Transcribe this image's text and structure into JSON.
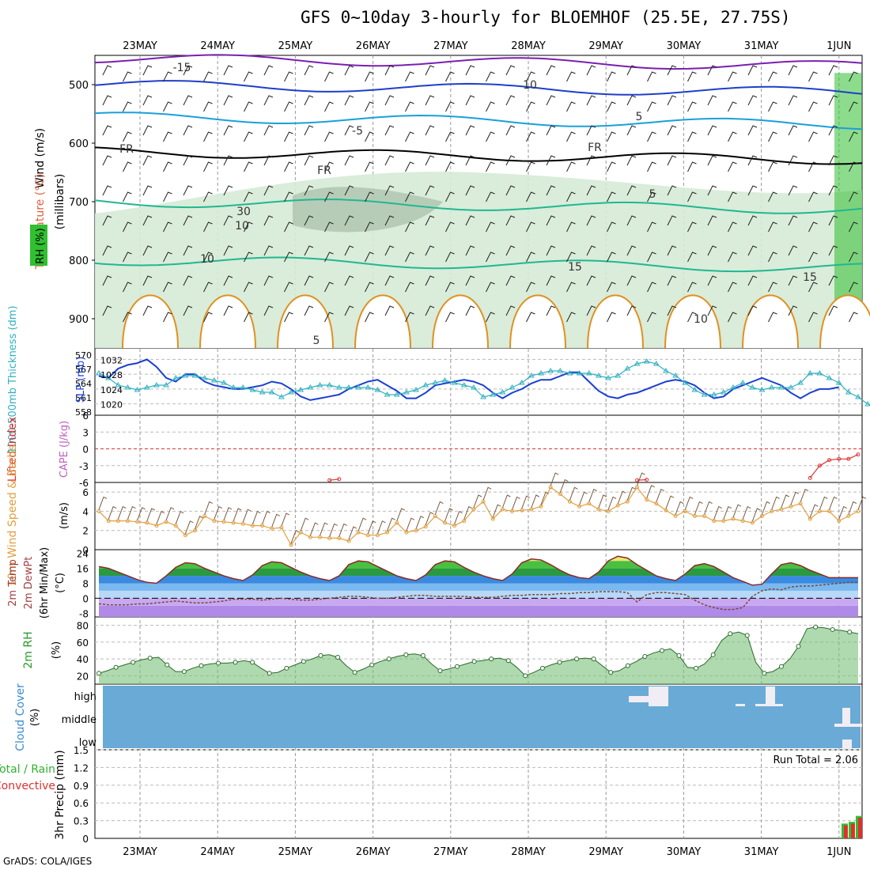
{
  "title": "GFS 0~10day 3-hourly for BLOEMHOF (25.5E, 27.75S)",
  "credit": "GrADS: COLA/IGES",
  "dates": [
    "23MAY",
    "24MAY",
    "25MAY",
    "26MAY",
    "27MAY",
    "28MAY",
    "29MAY",
    "30MAY",
    "31MAY",
    "1JUN"
  ],
  "colors": {
    "wind_contour": "#1f3fc8",
    "temp_cold": "#7a1fb0",
    "temp_mid": "#1aa0d8",
    "temp_warm": "#20b890",
    "temp_hot": "#e09020",
    "rh_shade": "#d6ead6",
    "rh_dark": "#a0b8a0",
    "green": "#30c030",
    "slp": "#1a3fd0",
    "thickness": "#30b0c0",
    "lifted": "#e03030",
    "wind10": "#e0a040",
    "cloud": "#6aaad6"
  },
  "chart_data": [
    {
      "type": "line",
      "panel": "upper-air",
      "ylabel": "(millibars)",
      "legend_labels": [
        "Wind (m/s)",
        "Temperature (°C)",
        "RH (%)"
      ],
      "y_ticks": [
        "500",
        "600",
        "700",
        "800",
        "900"
      ],
      "ylim": [
        950,
        450
      ],
      "contour_labels": [
        "-15",
        "10",
        "5",
        "-5",
        "FR",
        "FR",
        "FR",
        "5",
        "15",
        "10",
        "15",
        "10",
        "5",
        "30",
        "10"
      ]
    },
    {
      "type": "line",
      "panel": "slp-thickness",
      "ylabel_left": "1000-500mb Thickness (dm)",
      "ylabel_right": "SLP (mb)",
      "left_ticks": [
        "570",
        "567",
        "564",
        "561",
        "558"
      ],
      "right_ticks": [
        "1032",
        "1028",
        "1024",
        "1020"
      ],
      "series": [
        {
          "name": "SLP (mb)",
          "axis": "right",
          "values": [
            1027.5,
            1027,
            1029.5,
            1030.5,
            1031,
            1032,
            1030,
            1027,
            1026,
            1028,
            1028,
            1026,
            1025,
            1024.5,
            1024,
            1024,
            1024.5,
            1025,
            1026,
            1025.5,
            1024,
            1022,
            1021,
            1021.5,
            1022,
            1022.5,
            1024,
            1025,
            1026,
            1026.5,
            1025,
            1023.5,
            1021.5,
            1021.5,
            1023,
            1025,
            1025.5,
            1026,
            1026.5,
            1026,
            1025,
            1023,
            1021.5,
            1023,
            1024,
            1025.5,
            1026.5,
            1026.5,
            1027.5,
            1028.5,
            1028.5,
            1026,
            1023.5,
            1022,
            1021.5,
            1022.5,
            1023,
            1024,
            1025,
            1026,
            1026.5,
            1026,
            1025,
            1023,
            1021.5,
            1022,
            1024,
            1025,
            1026,
            1027,
            1026,
            1025,
            1023,
            1021.5,
            1023,
            1024,
            1024,
            1024.5
          ]
        },
        {
          "name": "1000-500mb Thickness (dm)",
          "axis": "left",
          "values": [
            566,
            565,
            563.5,
            563,
            562.5,
            563,
            563.5,
            563.5,
            565,
            565.5,
            565.5,
            565,
            564.5,
            564,
            563,
            563,
            562.5,
            562,
            562,
            561,
            562,
            562.5,
            563,
            563.5,
            563.5,
            563,
            563,
            563,
            563,
            562.5,
            561.5,
            561.5,
            562,
            562.5,
            563.5,
            564,
            564.5,
            564,
            563.5,
            563,
            561,
            561.5,
            562,
            563,
            564,
            565.5,
            566,
            566.5,
            566.5,
            566,
            566,
            566,
            565.5,
            565,
            565.5,
            567,
            568,
            568.5,
            568,
            566.5,
            565.5,
            564,
            562.5,
            561.5,
            561.5,
            562,
            563,
            564,
            563,
            562.5,
            563,
            563,
            563,
            564,
            566,
            566,
            565,
            564,
            562,
            561,
            559.5,
            558.5,
            558.5
          ]
        }
      ]
    },
    {
      "type": "line",
      "panel": "lifted-cape",
      "ylabel_left": "Lifted Index",
      "ylabel_right": "CAPE (J/kg)",
      "y_ticks": [
        "6",
        "3",
        "0",
        "-3",
        "-6"
      ],
      "ylim": [
        6,
        -6
      ],
      "series": [
        {
          "name": "Lifted Index",
          "segments": [
            {
              "start": 24,
              "values": [
                5.6,
                5.4
              ]
            },
            {
              "start": 56,
              "values": [
                5.6,
                5.5
              ]
            },
            {
              "start": 74,
              "values": [
                5.2,
                3.0,
                2.0,
                1.8,
                1.8,
                1.0
              ]
            }
          ]
        }
      ]
    },
    {
      "type": "line",
      "panel": "wind10m",
      "ylabel_left": "10m Wind Speed & Barbs",
      "ylabel_right": "(m/s)",
      "y_ticks": [
        "6",
        "4",
        "2",
        "0"
      ],
      "ylim": [
        0,
        7
      ],
      "series": [
        {
          "name": "10m Wind Speed",
          "values": [
            4,
            3,
            3,
            3,
            2.9,
            2.8,
            2.5,
            2.9,
            2.5,
            1.5,
            2,
            3.5,
            3,
            2.9,
            2.8,
            2.7,
            2.5,
            2.5,
            2.2,
            2.3,
            0.5,
            1.8,
            1.3,
            1.3,
            1.2,
            1.2,
            0.9,
            1.8,
            1.5,
            1.5,
            1.8,
            2.8,
            1.8,
            2,
            2.4,
            3.5,
            2.8,
            2.5,
            3,
            4.2,
            5,
            3.2,
            4.2,
            4,
            4.1,
            4.2,
            4.5,
            6.5,
            5.8,
            5,
            4.5,
            4.8,
            4.2,
            4,
            4.6,
            5,
            6.5,
            5.2,
            4.8,
            4.1,
            3.5,
            4,
            3.5,
            3.5,
            3,
            3,
            3.2,
            3,
            2.8,
            3.5,
            4,
            4.2,
            4.5,
            4.8,
            3.2,
            4,
            4,
            3,
            3.5,
            4
          ]
        }
      ]
    },
    {
      "type": "area",
      "panel": "temperature",
      "ylabel": "2m Temp 2m DewPt (6hr Min/Max) (°C)",
      "y_ticks": [
        "24",
        "16",
        "8",
        "0",
        "-8"
      ],
      "ylim": [
        -10,
        26
      ],
      "series": [
        {
          "name": "2m Temp",
          "values": [
            17,
            16,
            14,
            12,
            10,
            8.5,
            8,
            12,
            16.5,
            19,
            18.5,
            16,
            14,
            12,
            10.5,
            9.5,
            12.5,
            17.5,
            19.5,
            19,
            16.5,
            14,
            12,
            10.5,
            9.5,
            12,
            18,
            20,
            19.5,
            17,
            14.5,
            12,
            10.5,
            9.5,
            12.5,
            18,
            20,
            19.5,
            16.5,
            14,
            12,
            10.5,
            9.5,
            13,
            19,
            21,
            20.5,
            18,
            15,
            12.5,
            11,
            10.5,
            14,
            20,
            22.5,
            21.5,
            18,
            15,
            12,
            10.5,
            9.5,
            13,
            17.5,
            18.5,
            17,
            14,
            11,
            9,
            7,
            7.5,
            13,
            18,
            19,
            17.5,
            15,
            13,
            11,
            11,
            11,
            11
          ]
        },
        {
          "name": "2m DewPt",
          "values": [
            -3,
            -3.5,
            -3.5,
            -3.5,
            -3,
            -3,
            -2.5,
            -2,
            -1.5,
            -2,
            -2.5,
            -2.5,
            -2,
            -1.5,
            -0.5,
            -0.5,
            -0.5,
            -1,
            -0.5,
            0,
            -0.5,
            -1,
            -1,
            -0.5,
            0,
            0.5,
            1,
            1,
            0.5,
            0,
            0,
            0.5,
            1,
            1.5,
            1.5,
            1,
            1,
            1,
            1,
            0.5,
            0.5,
            0.5,
            1,
            1.5,
            1.5,
            2,
            2,
            2,
            2.5,
            2.5,
            3,
            3,
            3.5,
            3.5,
            3.5,
            3,
            -2,
            2,
            3,
            3,
            2.5,
            2,
            -1,
            -3.5,
            -5,
            -6,
            -6,
            -5,
            1,
            4,
            5,
            4.5,
            6,
            6.5,
            6.5,
            7,
            7.5,
            8,
            8.5,
            8.5
          ]
        }
      ]
    },
    {
      "type": "area",
      "panel": "rh2m",
      "ylabel": "2m RH (%)",
      "y_ticks": [
        "80",
        "60",
        "40",
        "20"
      ],
      "ylim": [
        10,
        90
      ],
      "series": [
        {
          "name": "2m RH",
          "values": [
            23,
            26,
            30,
            33,
            36,
            39,
            41,
            42,
            33,
            25,
            25,
            29,
            32,
            34,
            35,
            35,
            36,
            38,
            36,
            29,
            23,
            24,
            29,
            33,
            37,
            40,
            44,
            45,
            42,
            32,
            24,
            28,
            33,
            37,
            40,
            43,
            45,
            46,
            44,
            34,
            26,
            28,
            31,
            34,
            37,
            38,
            40,
            41,
            38,
            30,
            20,
            24,
            29,
            33,
            36,
            38,
            40,
            41,
            40,
            32,
            24,
            26,
            32,
            37,
            43,
            47,
            50,
            52,
            44,
            30,
            29,
            34,
            45,
            62,
            70,
            72,
            68,
            36,
            23,
            25,
            31,
            40,
            55,
            76,
            78,
            77,
            75,
            74,
            72,
            70
          ]
        }
      ]
    },
    {
      "type": "bar",
      "panel": "cloud",
      "ylabel": "Cloud Cover (%)",
      "levels": [
        "high",
        "middle",
        "low"
      ],
      "background": "#6aaad6"
    },
    {
      "type": "bar",
      "panel": "precip",
      "ylabel": "3hr Precip (mm)",
      "ylabel_left_lines": [
        "Total / Rain",
        "Convective"
      ],
      "y_ticks": [
        "1.5",
        "1.2",
        "0.9",
        "0.6",
        "0.3",
        "0"
      ],
      "ylim": [
        0,
        1.5
      ],
      "annotation": "Run Total = 2.06",
      "series": [
        {
          "name": "Total / Rain",
          "values": [
            0.25,
            0.28,
            0.38
          ]
        },
        {
          "name": "Convective",
          "values": [
            0.22,
            0.25,
            0.35
          ]
        }
      ]
    }
  ]
}
